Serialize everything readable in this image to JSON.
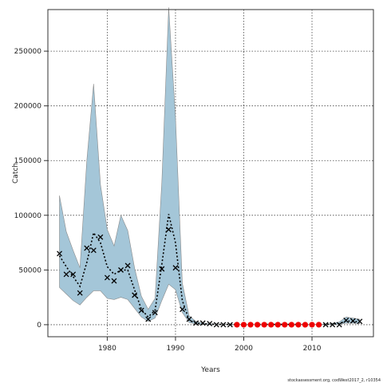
{
  "chart_data": {
    "type": "line",
    "xlabel": "Years",
    "ylabel": "Catch",
    "credit": "stockassessment.org, codWest2017_2, r10354",
    "xlim": [
      1971.3,
      2019.0
    ],
    "ylim": [
      -11000,
      288000
    ],
    "x_ticks": [
      1980,
      1990,
      2000,
      2010
    ],
    "y_ticks": [
      0,
      50000,
      100000,
      150000,
      200000,
      250000
    ],
    "grid": true,
    "colors": {
      "band_fill": "#a4c6d8",
      "band_edge": "#8a8a8a",
      "estimate_line": "#000000",
      "observed_marker": "#000000",
      "missing_marker": "#ee0000"
    },
    "series": [
      {
        "role": "estimate",
        "x": [
          1973,
          1974,
          1975,
          1976,
          1977,
          1978,
          1979,
          1980,
          1981,
          1982,
          1983,
          1984,
          1985,
          1986,
          1987,
          1988,
          1989,
          1990,
          1991,
          1992,
          1993,
          1994,
          1995,
          1996,
          1997,
          1998,
          1999,
          2000,
          2001,
          2002,
          2003,
          2004,
          2005,
          2006,
          2007,
          2008,
          2009,
          2010,
          2011,
          2012,
          2013,
          2014,
          2015,
          2016,
          2017
        ],
        "y": [
          63000,
          53000,
          44000,
          35000,
          57000,
          84000,
          75000,
          53000,
          46000,
          50000,
          50000,
          32000,
          14000,
          7000,
          13000,
          55000,
          101000,
          75000,
          22000,
          4000,
          1500,
          800,
          500,
          300,
          200,
          200,
          200,
          200,
          200,
          200,
          200,
          200,
          200,
          200,
          200,
          200,
          200,
          200,
          200,
          200,
          600,
          1000,
          3500,
          3000,
          2500
        ]
      },
      {
        "role": "ci_upper",
        "y": [
          118000,
          85000,
          68000,
          52000,
          150000,
          220000,
          128000,
          87000,
          72000,
          100000,
          86000,
          52000,
          26000,
          14000,
          24000,
          130000,
          290000,
          190000,
          38000,
          8000,
          3000,
          1500,
          1000,
          600,
          500,
          400,
          400,
          400,
          400,
          400,
          400,
          400,
          400,
          400,
          400,
          400,
          400,
          400,
          400,
          400,
          1200,
          2500,
          7000,
          6000,
          5000
        ]
      },
      {
        "role": "ci_lower",
        "y": [
          34000,
          28000,
          22000,
          18000,
          25000,
          31000,
          31000,
          24000,
          23000,
          25000,
          23000,
          15000,
          7000,
          3000,
          6000,
          22000,
          37000,
          32000,
          11000,
          2000,
          700,
          300,
          200,
          100,
          50,
          50,
          50,
          50,
          50,
          50,
          50,
          50,
          50,
          50,
          50,
          50,
          50,
          50,
          50,
          50,
          200,
          400,
          1500,
          1300,
          1000
        ]
      },
      {
        "role": "observed",
        "x": [
          1973,
          1974,
          1975,
          1976,
          1977,
          1978,
          1979,
          1980,
          1981,
          1982,
          1983,
          1984,
          1985,
          1986,
          1987,
          1988,
          1989,
          1990,
          1991,
          1992,
          1993,
          1994,
          1995,
          1996,
          1997,
          1998,
          2012,
          2013,
          2014,
          2015,
          2016,
          2017
        ],
        "y": [
          65000,
          46000,
          46000,
          29000,
          70000,
          68000,
          80000,
          43000,
          40000,
          50000,
          54000,
          27000,
          13000,
          5000,
          11000,
          51000,
          87000,
          52000,
          14000,
          5000,
          1500,
          1500,
          1000,
          0,
          0,
          0,
          0,
          0,
          0,
          4000,
          3500,
          3000
        ]
      },
      {
        "role": "missing",
        "x": [
          1999,
          2000,
          2001,
          2002,
          2003,
          2004,
          2005,
          2006,
          2007,
          2008,
          2009,
          2010,
          2011
        ],
        "y": [
          0,
          0,
          0,
          0,
          0,
          0,
          0,
          0,
          0,
          0,
          0,
          0,
          0
        ]
      }
    ]
  }
}
